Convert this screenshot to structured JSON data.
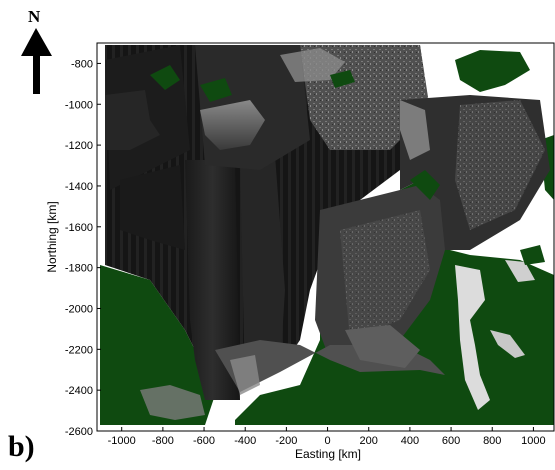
{
  "panel_label": "b)",
  "north_arrow": {
    "letter": "N",
    "icon": "north-arrow-icon"
  },
  "axes": {
    "xlabel": "Easting [km]",
    "ylabel": "Northing [km]",
    "xlim": [
      -1120,
      1100
    ],
    "ylim": [
      -2600,
      -700
    ],
    "x_ticks": [
      -1000,
      -800,
      -600,
      -400,
      -200,
      0,
      200,
      400,
      600,
      800,
      1000
    ],
    "y_ticks": [
      -800,
      -1000,
      -1200,
      -1400,
      -1600,
      -1800,
      -2000,
      -2200,
      -2400,
      -2600
    ]
  },
  "colors": {
    "land": "#0f4a10",
    "sar_dark": "#0c0c0c",
    "sar_mid": "#3a3a3a",
    "sar_bright": "#c8c8c8",
    "frame": "#000000"
  }
}
